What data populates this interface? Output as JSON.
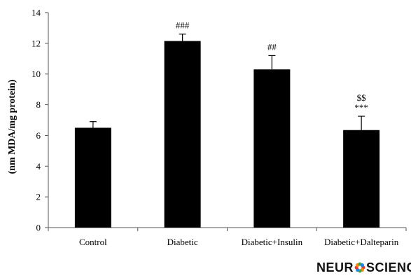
{
  "chart_data": {
    "type": "bar",
    "title": "",
    "xlabel": "",
    "ylabel": "(nm MDA/mg protein)",
    "categories": [
      "Control",
      "Diabetic",
      "Diabetic+Insulin",
      "Diabetic+Dalteparin"
    ],
    "values": [
      6.5,
      12.15,
      10.3,
      6.35
    ],
    "errors": [
      0.4,
      0.45,
      0.9,
      0.9
    ],
    "annotations": [
      "",
      "###",
      "##",
      "$$\n***"
    ],
    "ylim": [
      0,
      14
    ],
    "yticks": [
      0,
      2,
      4,
      6,
      8,
      10,
      12,
      14
    ],
    "grid": false,
    "legend": "none",
    "bar_color": "#000000"
  },
  "logo": {
    "part1": "NEUR",
    "part2": "SCIENCE",
    "colors": [
      "#e53935",
      "#fb8c00",
      "#43a047",
      "#1e88e5"
    ]
  }
}
